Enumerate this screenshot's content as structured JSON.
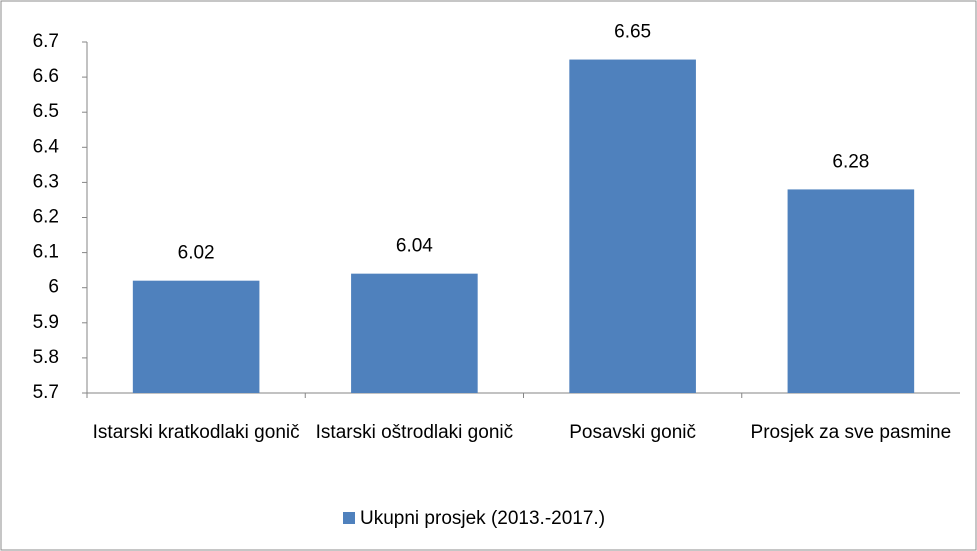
{
  "chart_data": {
    "type": "bar",
    "categories": [
      "Istarski kratkodlaki gonič",
      "Istarski oštrodlaki gonič",
      "Posavski gonič",
      "Prosjek za sve pasmine"
    ],
    "series": [
      {
        "name": "Ukupni prosjek (2013.-2017.)",
        "color": "#4f81bd",
        "values": [
          6.02,
          6.04,
          6.65,
          6.28
        ]
      }
    ],
    "ylim": [
      5.7,
      6.7
    ],
    "yticks": [
      5.7,
      5.8,
      5.9,
      6,
      6.1,
      6.2,
      6.3,
      6.4,
      6.5,
      6.6,
      6.7
    ],
    "grid": false,
    "legend": "bottom"
  }
}
